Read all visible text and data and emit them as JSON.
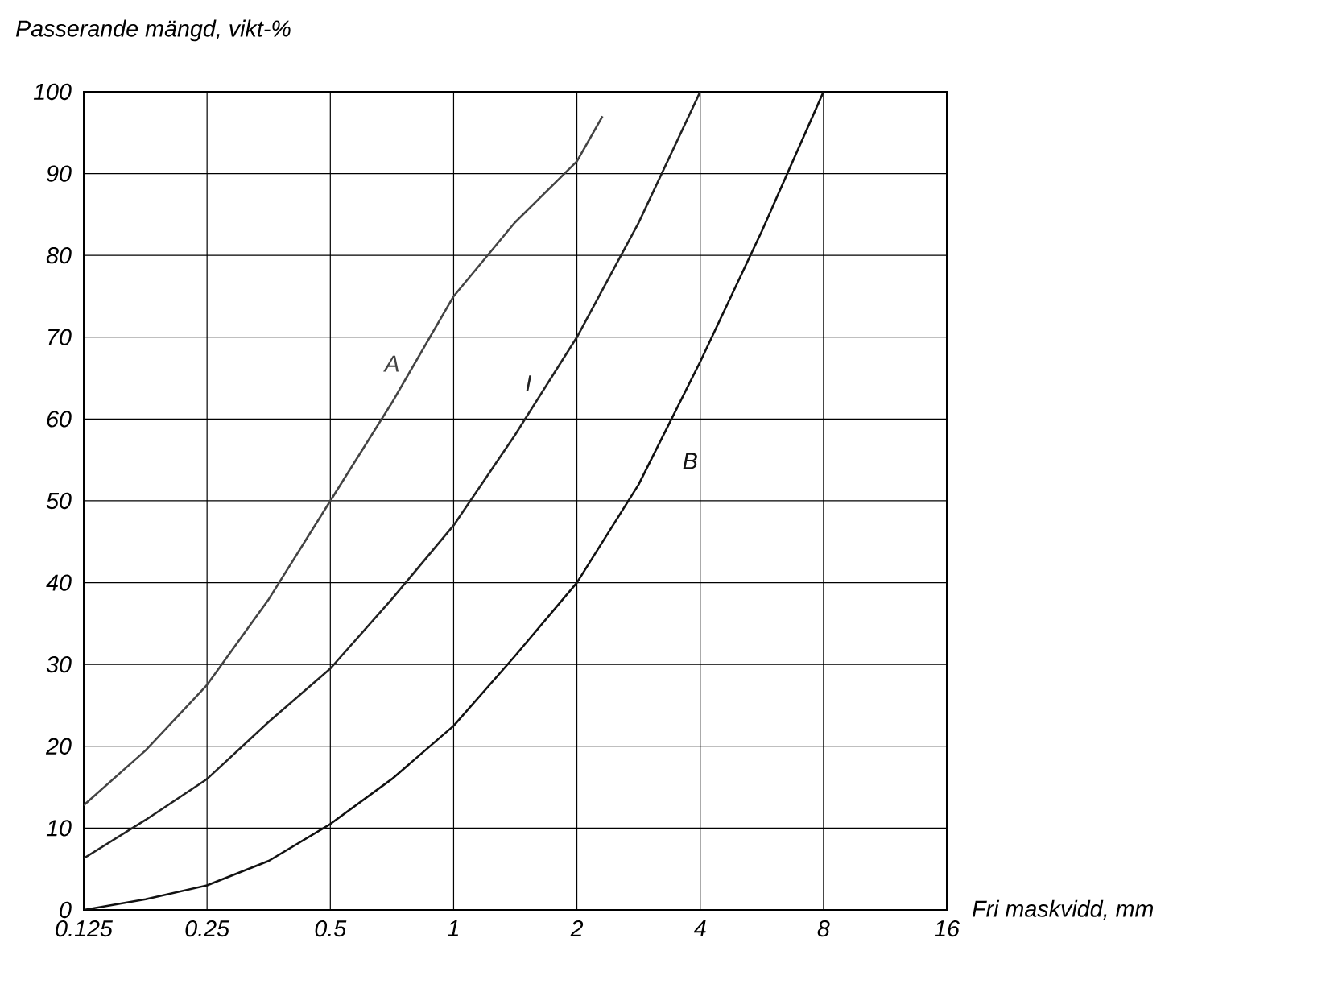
{
  "chart_data": {
    "type": "line",
    "xlabel": "Fri maskvidd, mm",
    "ylabel": "Passerande mängd, vikt-%",
    "log": "x",
    "grid": true,
    "legend": false,
    "marker": "none",
    "line_style": "solid",
    "xlim": [
      0.125,
      16
    ],
    "ylim": [
      0,
      100
    ],
    "xticks": [
      0.125,
      0.25,
      0.5,
      1,
      2,
      4,
      8,
      16
    ],
    "yticks": [
      0,
      10,
      20,
      30,
      40,
      50,
      60,
      70,
      80,
      90,
      100
    ],
    "series": [
      {
        "name": "A",
        "color": "#444444",
        "x": [
          0.125,
          0.177,
          0.25,
          0.354,
          0.5,
          0.707,
          1,
          1.41,
          2,
          2.31
        ],
        "values": [
          12.8,
          19.5,
          27.5,
          38,
          50,
          62,
          75,
          84,
          91.5,
          97
        ]
      },
      {
        "name": "I",
        "color": "#222222",
        "x": [
          0.125,
          0.177,
          0.25,
          0.354,
          0.5,
          0.707,
          1,
          1.41,
          2,
          2.83,
          4
        ],
        "values": [
          6.3,
          11,
          16,
          23,
          29.5,
          38,
          47,
          58,
          70,
          84,
          100
        ]
      },
      {
        "name": "B",
        "color": "#111111",
        "x": [
          0.125,
          0.177,
          0.25,
          0.354,
          0.5,
          0.707,
          1,
          1.41,
          2,
          2.83,
          4,
          5.66,
          8
        ],
        "values": [
          0,
          1.3,
          3,
          6,
          10.5,
          16,
          22.5,
          31,
          40,
          52,
          67,
          83,
          100
        ]
      }
    ]
  }
}
